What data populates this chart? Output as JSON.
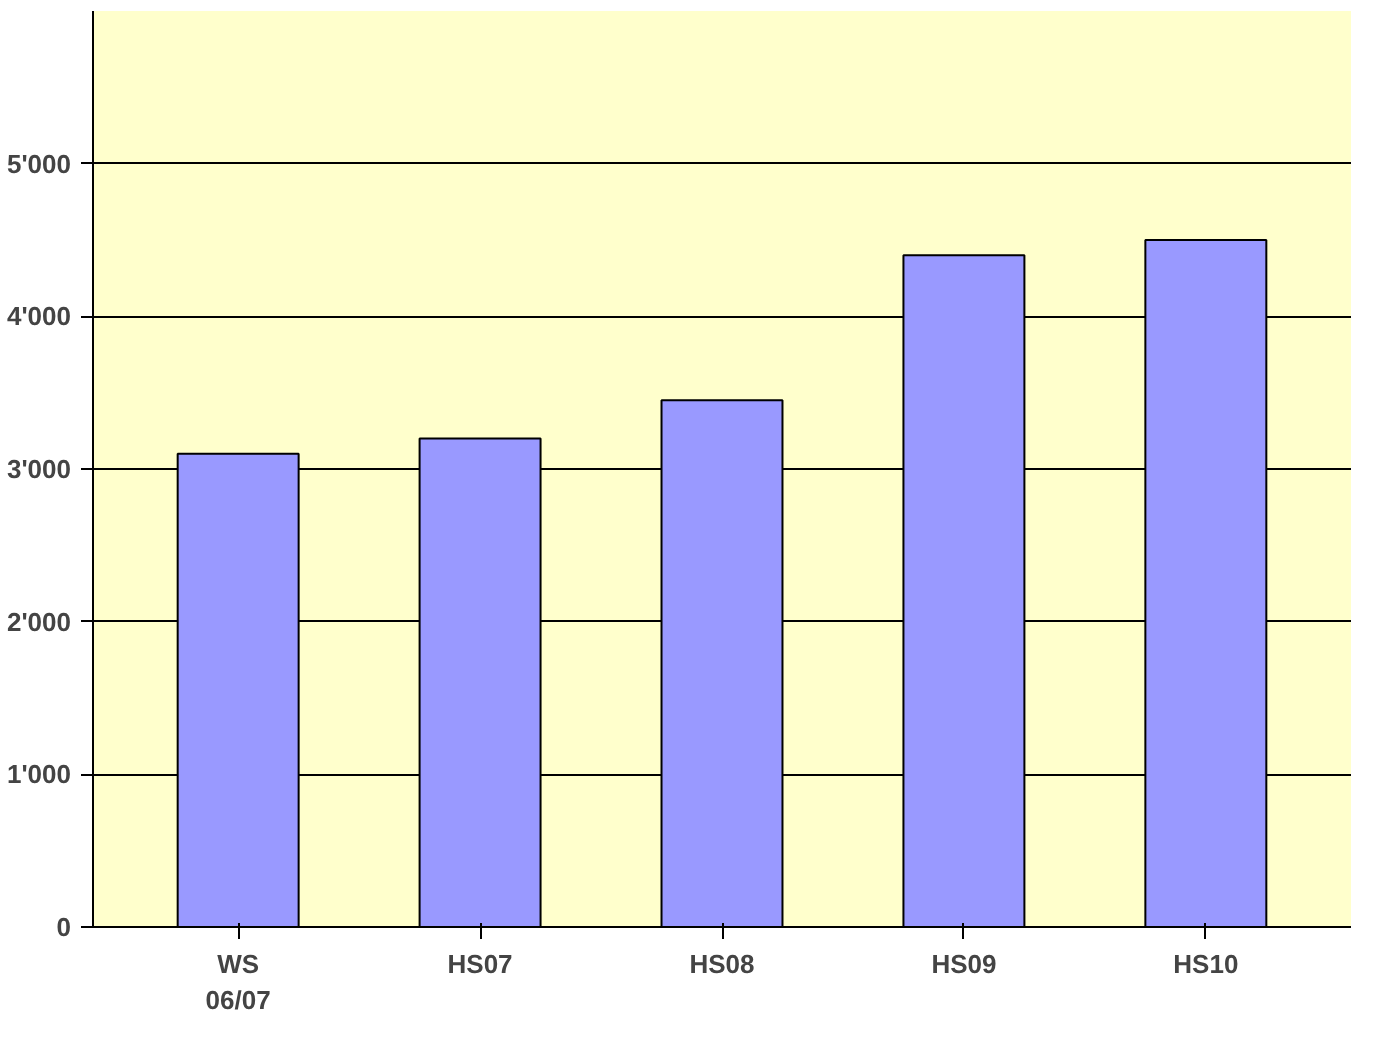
{
  "chart_data": {
    "type": "bar",
    "categories": [
      "WS\n06/07",
      "HS07",
      "HS08",
      "HS09",
      "HS10"
    ],
    "values": [
      3100,
      3200,
      3450,
      4400,
      4500
    ],
    "color": "#9999ff",
    "ylim": [
      0,
      6000
    ],
    "yticks": [
      {
        "value": 0,
        "label": "0"
      },
      {
        "value": 1000,
        "label": "1'000"
      },
      {
        "value": 2000,
        "label": "2'000"
      },
      {
        "value": 3000,
        "label": "3'000"
      },
      {
        "value": 4000,
        "label": "4'000"
      },
      {
        "value": 5000,
        "label": "5'000"
      }
    ],
    "grid": "y"
  }
}
